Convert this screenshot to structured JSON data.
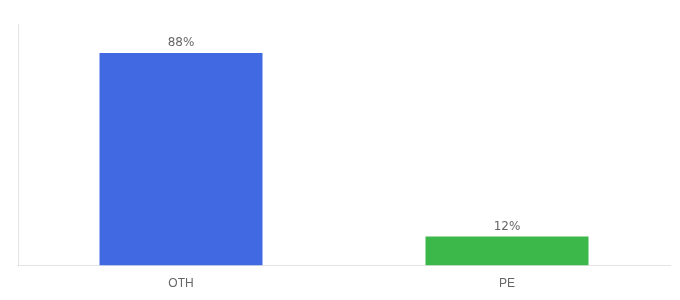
{
  "chart_data": {
    "type": "bar",
    "categories": [
      "OTH",
      "PE"
    ],
    "values": [
      88,
      12
    ],
    "colors": [
      "#4169E1",
      "#3CB84A"
    ],
    "value_labels": [
      "88%",
      "12%"
    ],
    "data_labels": true,
    "ylim": [
      0,
      100
    ],
    "grid": false,
    "tick_labels": "x"
  }
}
